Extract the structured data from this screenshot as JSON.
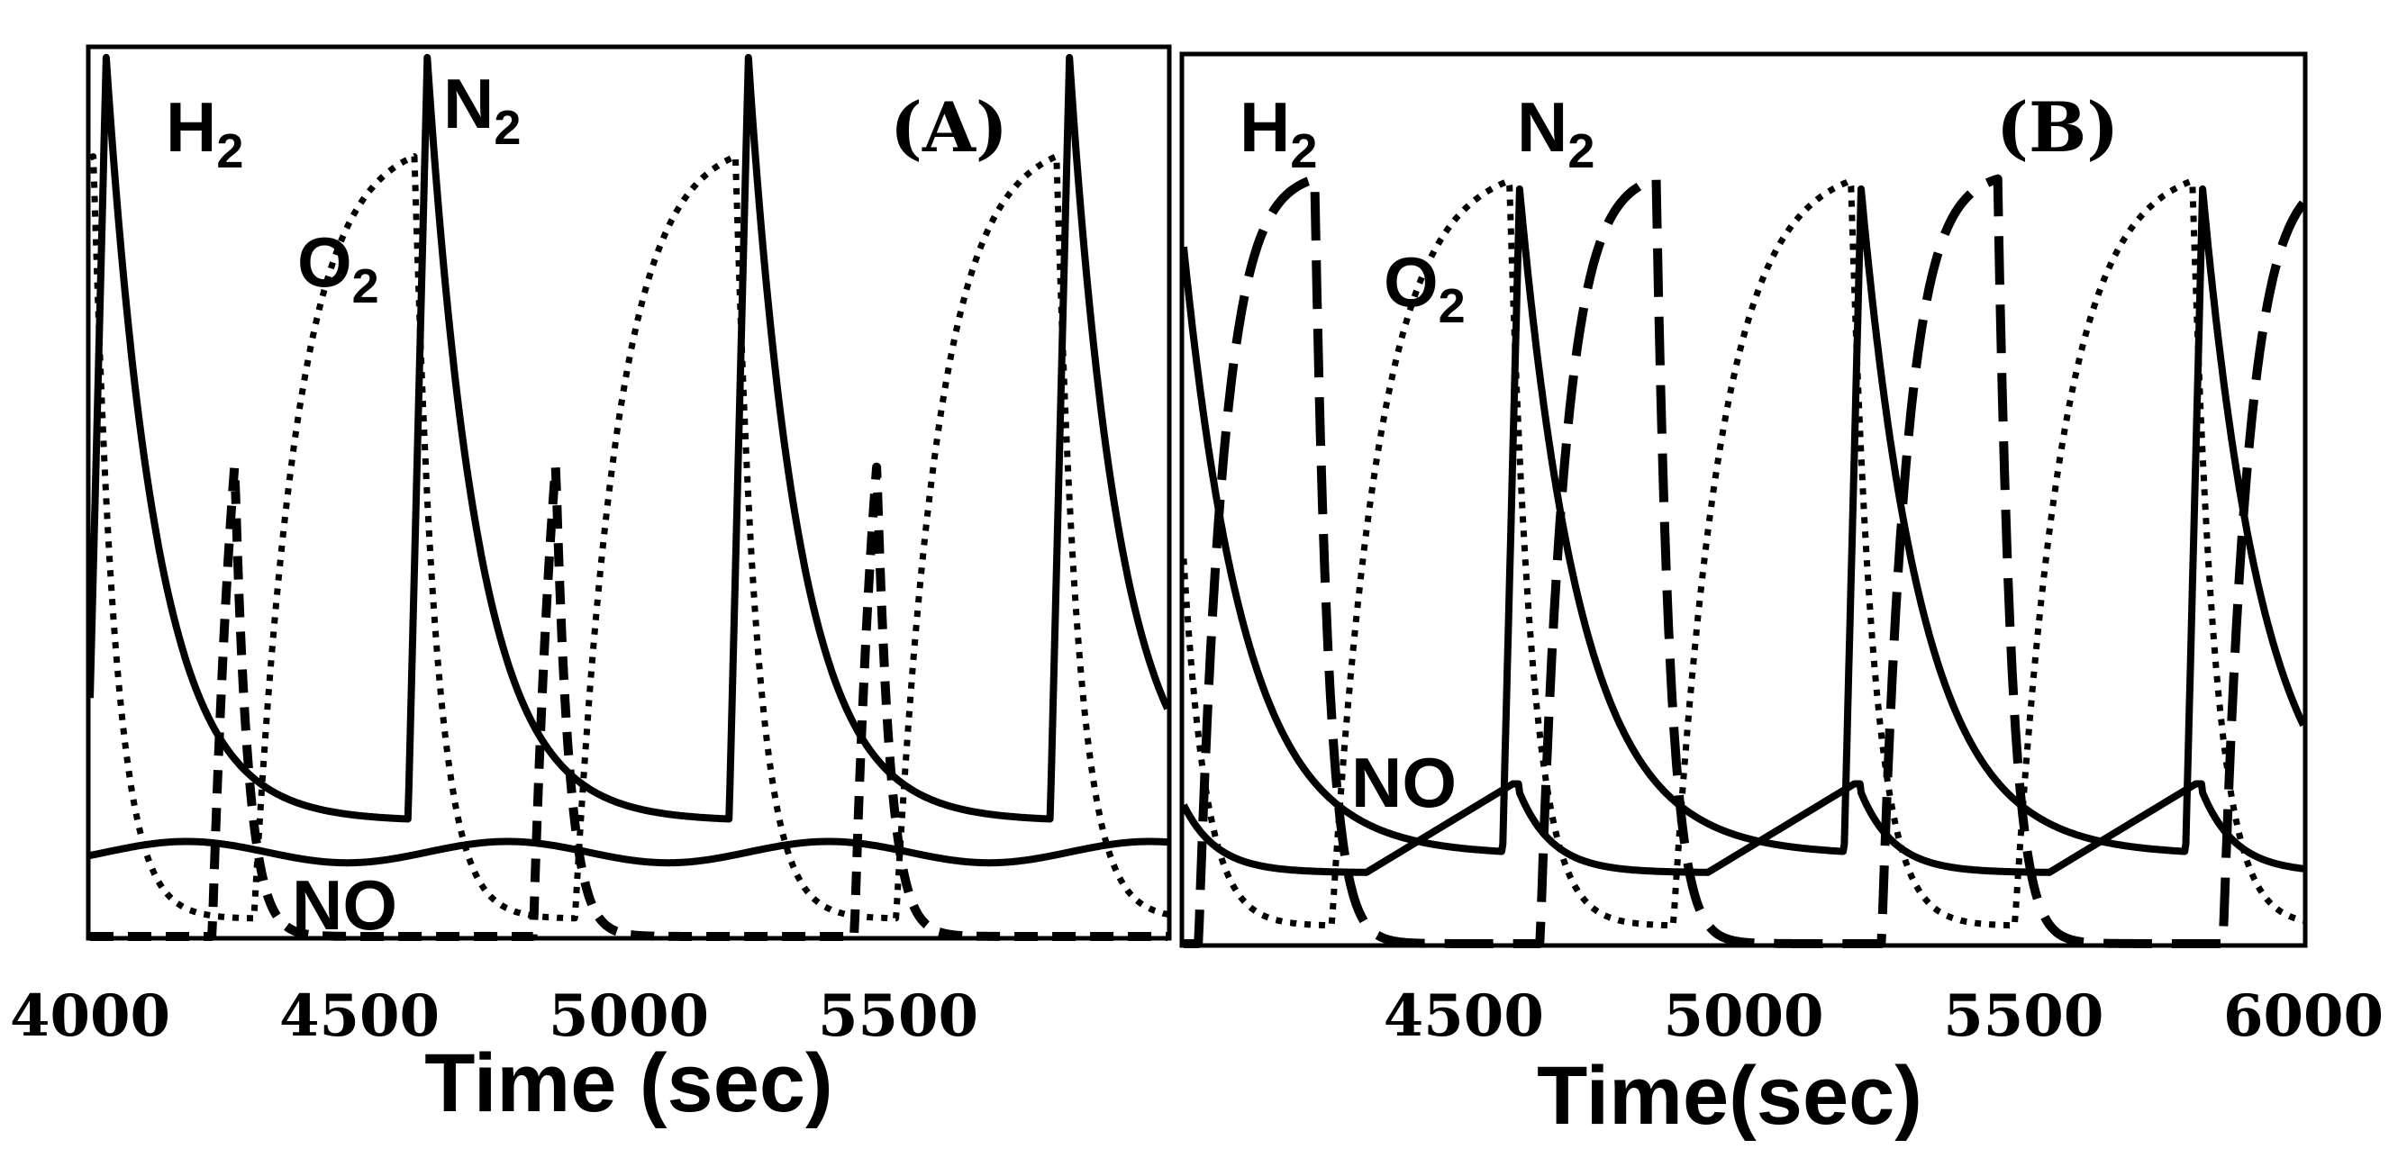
{
  "chart_data": [
    {
      "type": "line",
      "panel": "A",
      "title": "(A)",
      "xlabel": "Time (sec)",
      "ylabel": "",
      "xlim": [
        4000,
        6000
      ],
      "ylim": [
        0,
        1
      ],
      "x_ticks": [
        4000,
        4500,
        5000,
        5500
      ],
      "x_tick_labels": [
        "4000",
        "4500",
        "5000",
        "5500"
      ],
      "annotations": [
        {
          "base": "H",
          "sub": "2"
        },
        {
          "base": "N",
          "sub": "2"
        },
        {
          "base": "O",
          "sub": "2"
        },
        {
          "base": "NO",
          "sub": ""
        }
      ],
      "series": [
        {
          "name": "N2",
          "style": "solid",
          "period": 596,
          "phase": 4030,
          "peak": 0.99,
          "base": 0.13,
          "rise_frac": 0.06,
          "tau": 95
        },
        {
          "name": "H2",
          "style": "dashed",
          "period": 596,
          "phase": 4030,
          "peak": 0.88,
          "base": 0.0,
          "on_start": 0.33,
          "on_end": 0.4,
          "rise_tau": 45
        },
        {
          "name": "O2",
          "style": "dotted",
          "period": 596,
          "phase": 4030,
          "peak": 0.9,
          "base": 0.02,
          "on_start": 0.46,
          "on_end": 0.96,
          "rise_tau": 80,
          "fall_tau": 40
        },
        {
          "name": "NO",
          "style": "solid",
          "period": 596,
          "phase": 4030,
          "mean": 0.095,
          "amplitude": 0.012
        }
      ]
    },
    {
      "type": "line",
      "panel": "B",
      "title": "(B)",
      "xlabel": "Time(sec)",
      "ylabel": "",
      "xlim": [
        4000,
        6000
      ],
      "ylim": [
        0,
        1
      ],
      "x_ticks": [
        4500,
        5000,
        5500,
        6000
      ],
      "x_tick_labels": [
        "4500",
        "5000",
        "5500",
        "6000"
      ],
      "annotations": [
        {
          "base": "H",
          "sub": "2"
        },
        {
          "base": "N",
          "sub": "2"
        },
        {
          "base": "O",
          "sub": "2"
        },
        {
          "base": "NO",
          "sub": ""
        }
      ],
      "series": [
        {
          "name": "N2",
          "style": "solid",
          "period": 610,
          "phase": 3990,
          "peak": 0.85,
          "base": 0.1,
          "rise_frac": 0.05,
          "tau": 110
        },
        {
          "name": "H2",
          "style": "longdash",
          "period": 610,
          "phase": 3990,
          "peak": 0.87,
          "base": 0.0,
          "on_start": 0.06,
          "on_end": 0.4,
          "rise_tau": 45
        },
        {
          "name": "O2",
          "style": "dotted",
          "period": 610,
          "phase": 3990,
          "peak": 0.88,
          "base": 0.02,
          "on_start": 0.45,
          "on_end": 0.97,
          "rise_tau": 85,
          "fall_tau": 40
        },
        {
          "name": "NO",
          "style": "solid",
          "period": 610,
          "phase": 3990,
          "min": 0.08,
          "max": 0.18
        }
      ]
    }
  ]
}
